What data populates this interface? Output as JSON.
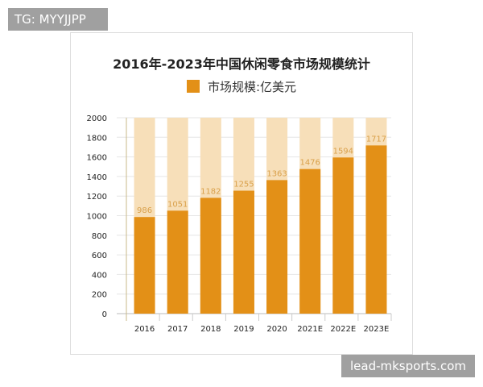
{
  "watermark_top": "TG: MYYJJPP",
  "watermark_bottom": "lead-mksports.com",
  "chart_data": {
    "type": "bar",
    "title": "2016年-2023年中国休闲零食市场规模统计",
    "legend": "市场规模:亿美元",
    "legend_placement": "top",
    "categories": [
      "2016",
      "2017",
      "2018",
      "2019",
      "2020",
      "2021E",
      "2022E",
      "2023E"
    ],
    "series": [
      {
        "name": "市场规模:亿美元",
        "values": [
          986,
          1051,
          1182,
          1255,
          1363,
          1476,
          1594,
          1717
        ]
      }
    ],
    "ylim": [
      0,
      2000
    ],
    "yticks": [
      0,
      200,
      400,
      600,
      800,
      1000,
      1200,
      1400,
      1600,
      1800,
      2000
    ],
    "grid": true,
    "colors": {
      "bar": "#e39017",
      "background_bar": "#f7dfb9",
      "label": "#d9a04a"
    }
  }
}
